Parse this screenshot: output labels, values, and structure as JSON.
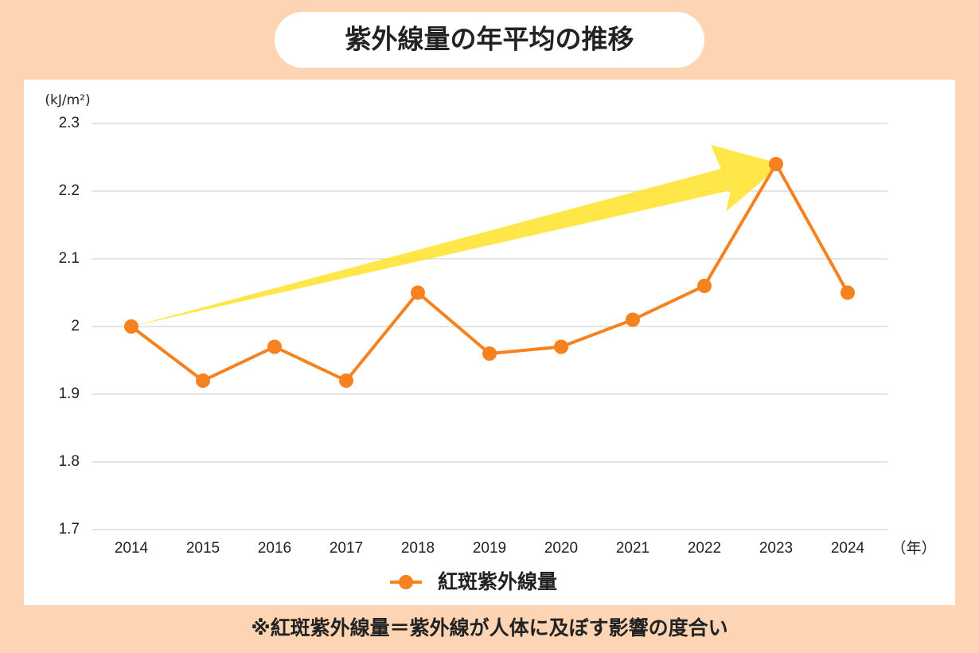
{
  "chart_data": {
    "type": "line",
    "title": "紫外線量の年平均の推移",
    "y_axis_label": "(kJ/m²)",
    "x_axis_label": "（年）",
    "footnote": "※紅斑紫外線量＝紫外線が人体に及ぼす影響の度合い",
    "categories": [
      "2014",
      "2015",
      "2016",
      "2017",
      "2018",
      "2019",
      "2020",
      "2021",
      "2022",
      "2023",
      "2024"
    ],
    "series": [
      {
        "name": "紅斑紫外線量",
        "color": "#f5821f",
        "values": [
          2.0,
          1.92,
          1.97,
          1.92,
          2.05,
          1.96,
          1.97,
          2.01,
          2.06,
          2.24,
          2.05
        ]
      }
    ],
    "ylim": [
      1.7,
      2.3
    ],
    "yticks": [
      1.7,
      1.8,
      1.9,
      2,
      2.1,
      2.2,
      2.3
    ],
    "grid": true
  }
}
